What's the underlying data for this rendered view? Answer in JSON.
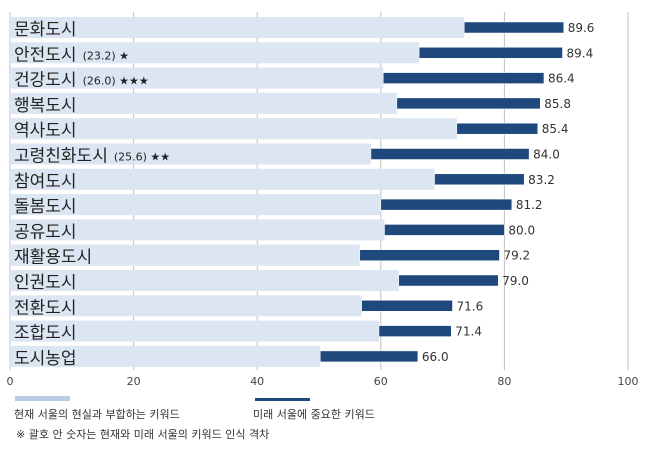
{
  "chart_data": {
    "type": "bar",
    "orientation": "horizontal",
    "categories": [
      "문화도시",
      "안전도시",
      "건강도시",
      "행복도시",
      "역사도시",
      "고령친화도시",
      "참여도시",
      "돌봄도시",
      "공유도시",
      "재활용도시",
      "인권도시",
      "전환도시",
      "조합도시",
      "도시농업"
    ],
    "annotations": [
      "",
      "(23.2) ★",
      "(26.0) ★★★",
      "",
      "",
      "(25.6) ★★",
      "",
      "",
      "",
      "",
      "",
      "",
      "",
      ""
    ],
    "series": [
      {
        "name": "현재 서울의 현실과 부합하는 키워드",
        "color": "#dce6f2",
        "values": [
          73.5,
          66.2,
          60.4,
          62.6,
          72.3,
          58.4,
          68.7,
          60.0,
          60.6,
          56.6,
          62.9,
          56.9,
          59.7,
          50.2
        ]
      },
      {
        "name": "미래 서울에 중요한 키워드",
        "color": "#1f497d",
        "values": [
          89.6,
          89.4,
          86.4,
          85.8,
          85.4,
          84.0,
          83.2,
          81.2,
          80.0,
          79.2,
          79.0,
          71.6,
          71.4,
          66.0
        ]
      }
    ],
    "value_labels": [
      "89.6",
      "89.4",
      "86.4",
      "85.8",
      "85.4",
      "84.0",
      "83.2",
      "81.2",
      "80.0",
      "79.2",
      "79.0",
      "71.6",
      "71.4",
      "66.0"
    ],
    "xlim": [
      0,
      100
    ],
    "xticks": [
      "0",
      "20",
      "40",
      "60",
      "80",
      "100"
    ],
    "grid": true,
    "legend_position": "bottom-left",
    "note": "※ 괄호 안 숫자는 현재와 미래 서울의 키워드 인식 격차"
  }
}
